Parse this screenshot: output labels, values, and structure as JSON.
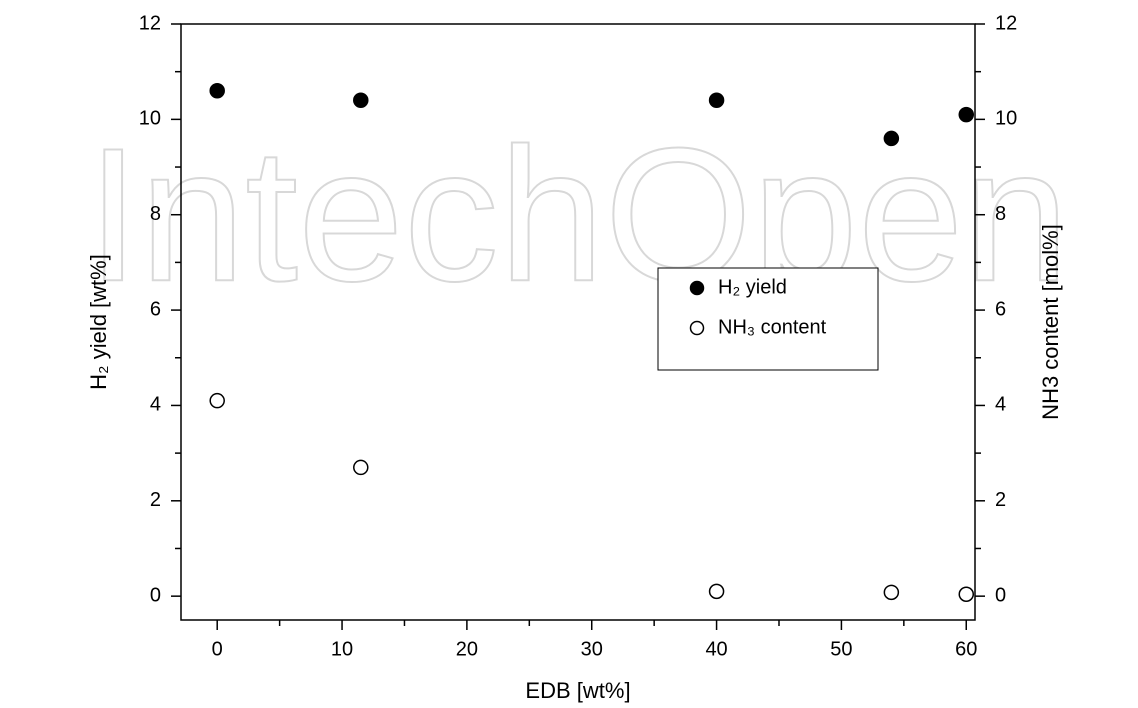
{
  "chart_data": {
    "type": "scatter",
    "watermark": "IntechOpen",
    "x_label": "EDB [wt%]",
    "y_label": "H₂ yield [wt%]",
    "y2_label": "NH3 content [mol%]",
    "x": [
      0,
      11.5,
      40,
      54,
      60
    ],
    "series": [
      {
        "name": "H₂ yield",
        "color": "#000000",
        "marker": "filled",
        "values": [
          10.6,
          10.4,
          10.4,
          9.6,
          10.1
        ]
      },
      {
        "name": "NH₃ content",
        "color": "#000000",
        "marker": "open",
        "axis": "y2",
        "values": [
          4.1,
          2.7,
          0.1,
          0.08,
          0.04
        ]
      }
    ],
    "xlim": [
      -2.9,
      60.7
    ],
    "xticks": [
      0,
      10,
      20,
      30,
      40,
      50,
      60
    ],
    "xminorticks": [
      5,
      15,
      25,
      35,
      45,
      55
    ],
    "ylim": [
      -0.5,
      12
    ],
    "yticks": [
      0,
      2,
      4,
      6,
      8,
      10,
      12
    ],
    "yminorticks": [
      1,
      3,
      5,
      7,
      9,
      11
    ],
    "y2lim": [
      -0.5,
      12
    ],
    "y2ticks": [
      0,
      2,
      4,
      6,
      8,
      10,
      12
    ],
    "y2minorticks": [
      1,
      3,
      5,
      7,
      9,
      11
    ],
    "grid": false,
    "legend": "center-right"
  }
}
